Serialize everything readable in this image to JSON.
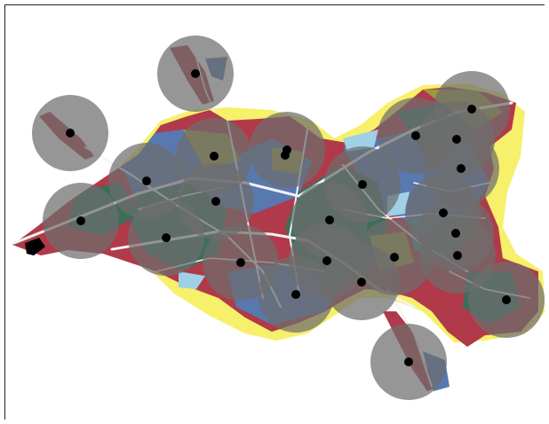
{
  "map": {
    "colors": {
      "yellow": "#f7f06a",
      "red": "#b03a4a",
      "blue": "#5878b0",
      "green": "#3c6e5a",
      "olive": "#9a9a3e",
      "teal": "#3e8f9a",
      "light_blue": "#9fd0e6",
      "street": "#f2f2f2",
      "buffer": "#6e6e6e",
      "station": "#000000"
    },
    "buffer_opacity": 0.72,
    "station_count": 25
  }
}
